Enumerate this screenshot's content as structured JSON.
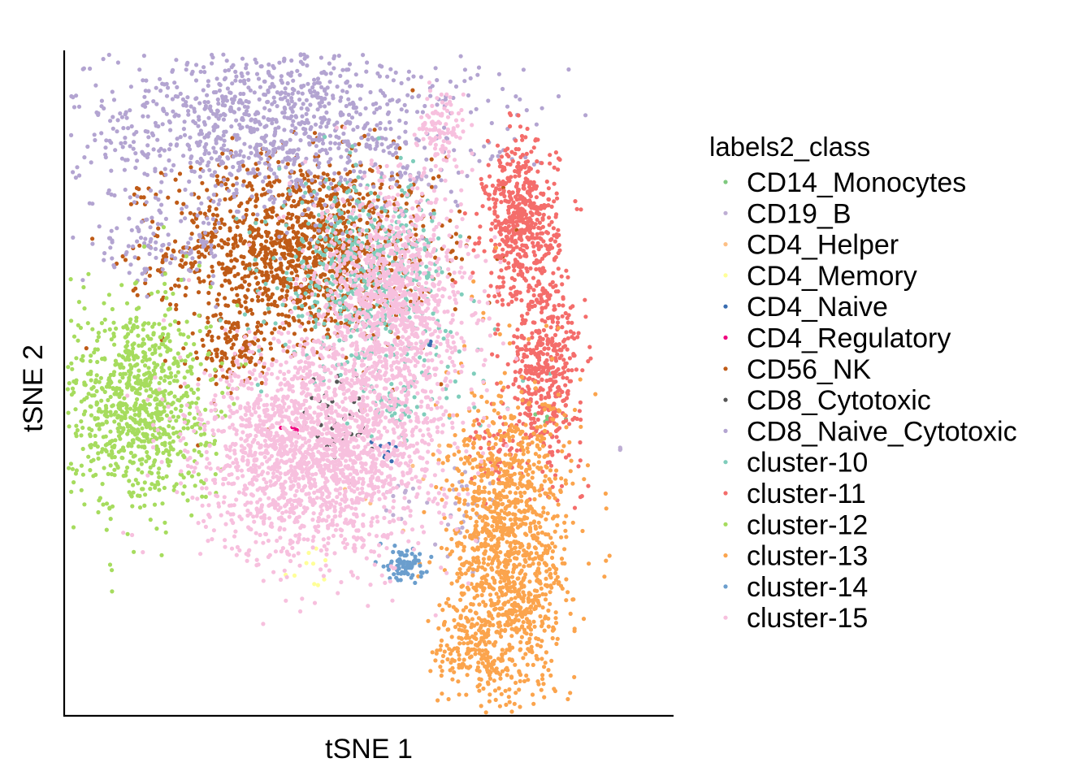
{
  "chart_data": {
    "type": "scatter",
    "title": "",
    "xlabel": "tSNE 1",
    "ylabel": "tSNE 2",
    "xlim": [
      -50,
      50
    ],
    "ylim": [
      -50,
      50
    ],
    "grid": false,
    "axis_ticks": false,
    "legend": {
      "title": "labels2_class",
      "placement": "right"
    },
    "series": [
      {
        "name": "CD14_Monocytes",
        "color": "#7fc97f",
        "clusters": [
          {
            "cx": 29,
            "cy": -5,
            "sx": 1.2,
            "sy": 0.6,
            "n": 8
          }
        ]
      },
      {
        "name": "CD19_B",
        "color": "#beaed4",
        "clusters": [
          {
            "cx": 16,
            "cy": -20,
            "sx": 3.5,
            "sy": 5,
            "n": 30
          },
          {
            "cx": 5,
            "cy": -18,
            "sx": 1.5,
            "sy": 1.5,
            "n": 10
          },
          {
            "cx": 42,
            "cy": -10,
            "sx": 0.6,
            "sy": 0.6,
            "n": 3
          },
          {
            "cx": 9,
            "cy": 31,
            "sx": 2,
            "sy": 1.2,
            "n": 10
          }
        ]
      },
      {
        "name": "CD4_Helper",
        "color": "#fdc086",
        "clusters": [
          {
            "cx": 4,
            "cy": -12,
            "sx": 6,
            "sy": 6,
            "n": 10
          }
        ]
      },
      {
        "name": "CD4_Memory",
        "color": "#ffff99",
        "clusters": [
          {
            "cx": -10,
            "cy": -28,
            "sx": 2,
            "sy": 2,
            "n": 10
          }
        ]
      },
      {
        "name": "CD4_Naive",
        "color": "#386cb0",
        "clusters": [
          {
            "cx": 3,
            "cy": -10,
            "sx": 1,
            "sy": 1,
            "n": 10
          },
          {
            "cx": 10,
            "cy": 6,
            "sx": 0.4,
            "sy": 0.4,
            "n": 3
          }
        ]
      },
      {
        "name": "CD4_Regulatory",
        "color": "#f0027f",
        "clusters": [
          {
            "cx": -12,
            "cy": -7,
            "sx": 0.6,
            "sy": 0.6,
            "n": 8
          }
        ]
      },
      {
        "name": "CD56_NK",
        "color": "#bf5b17",
        "clusters": [
          {
            "cx": -11,
            "cy": 20,
            "sx": 11,
            "sy": 7,
            "n": 1400
          },
          {
            "cx": -22,
            "cy": 5,
            "sx": 3,
            "sy": 3,
            "n": 100
          },
          {
            "cx": -38,
            "cy": 29,
            "sx": 0.3,
            "sy": 0.3,
            "n": 3
          }
        ]
      },
      {
        "name": "CD8_Cytotoxic",
        "color": "#555555",
        "clusters": [
          {
            "cx": -5,
            "cy": -5,
            "sx": 3,
            "sy": 4,
            "n": 40
          }
        ]
      },
      {
        "name": "CD8_Naive_Cytotoxic",
        "color": "#b3a4d1",
        "clusters": [
          {
            "cx": -16,
            "cy": 39,
            "sx": 17,
            "sy": 7,
            "n": 1200
          },
          {
            "cx": -35,
            "cy": 20,
            "sx": 6,
            "sy": 2.5,
            "n": 100
          }
        ]
      },
      {
        "name": "cluster-10",
        "color": "#7fcdbb",
        "clusters": [
          {
            "cx": -1,
            "cy": 16,
            "sx": 7,
            "sy": 7,
            "n": 500
          },
          {
            "cx": 4,
            "cy": -3,
            "sx": 2,
            "sy": 1.5,
            "n": 40
          },
          {
            "cx": 14,
            "cy": 0,
            "sx": 6,
            "sy": 6,
            "n": 30
          }
        ]
      },
      {
        "name": "cluster-11",
        "color": "#f46d6b",
        "clusters": [
          {
            "cx": 25,
            "cy": 24,
            "sx": 3,
            "sy": 6,
            "n": 550
          },
          {
            "cx": 29,
            "cy": 2,
            "sx": 3,
            "sy": 7,
            "n": 450
          },
          {
            "cx": 20,
            "cy": -10,
            "sx": 2,
            "sy": 3,
            "n": 50
          }
        ]
      },
      {
        "name": "cluster-12",
        "color": "#a6dc5e",
        "clusters": [
          {
            "cx": -38,
            "cy": -3,
            "sx": 6,
            "sy": 8,
            "n": 900
          }
        ]
      },
      {
        "name": "cluster-13",
        "color": "#fba44d",
        "clusters": [
          {
            "cx": 23,
            "cy": -25,
            "sx": 5,
            "sy": 12,
            "n": 1300
          },
          {
            "cx": 17,
            "cy": -40,
            "sx": 3,
            "sy": 3,
            "n": 150
          }
        ]
      },
      {
        "name": "cluster-14",
        "color": "#6b9ecd",
        "clusters": [
          {
            "cx": 6,
            "cy": -27,
            "sx": 1.5,
            "sy": 1.5,
            "n": 80
          }
        ]
      },
      {
        "name": "cluster-15",
        "color": "#f7c0de",
        "clusters": [
          {
            "cx": -8,
            "cy": -10,
            "sx": 10,
            "sy": 8,
            "n": 2000
          },
          {
            "cx": 4,
            "cy": 12,
            "sx": 6,
            "sy": 9,
            "n": 1200
          },
          {
            "cx": 12,
            "cy": 38,
            "sx": 2,
            "sy": 3,
            "n": 100
          }
        ]
      }
    ]
  }
}
